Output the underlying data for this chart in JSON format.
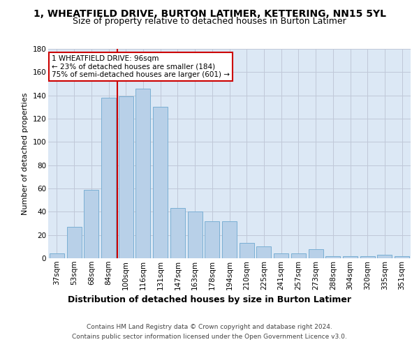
{
  "title": "1, WHEATFIELD DRIVE, BURTON LATIMER, KETTERING, NN15 5YL",
  "subtitle": "Size of property relative to detached houses in Burton Latimer",
  "xlabel": "Distribution of detached houses by size in Burton Latimer",
  "ylabel": "Number of detached properties",
  "categories": [
    "37sqm",
    "53sqm",
    "68sqm",
    "84sqm",
    "100sqm",
    "116sqm",
    "131sqm",
    "147sqm",
    "163sqm",
    "178sqm",
    "194sqm",
    "210sqm",
    "225sqm",
    "241sqm",
    "257sqm",
    "273sqm",
    "288sqm",
    "304sqm",
    "320sqm",
    "335sqm",
    "351sqm"
  ],
  "values": [
    4,
    27,
    59,
    138,
    139,
    146,
    130,
    43,
    40,
    32,
    32,
    13,
    10,
    4,
    4,
    8,
    2,
    2,
    2,
    3,
    2
  ],
  "bar_color": "#b8d0e8",
  "bar_edge_color": "#7aafd4",
  "bar_width": 0.85,
  "ylim": [
    0,
    180
  ],
  "yticks": [
    0,
    20,
    40,
    60,
    80,
    100,
    120,
    140,
    160,
    180
  ],
  "vline_index": 4,
  "vline_color": "#cc0000",
  "annotation_text": "1 WHEATFIELD DRIVE: 96sqm\n← 23% of detached houses are smaller (184)\n75% of semi-detached houses are larger (601) →",
  "annotation_box_color": "#ffffff",
  "annotation_box_edge": "#cc0000",
  "footer_line1": "Contains HM Land Registry data © Crown copyright and database right 2024.",
  "footer_line2": "Contains public sector information licensed under the Open Government Licence v3.0.",
  "title_fontsize": 10,
  "subtitle_fontsize": 9,
  "xlabel_fontsize": 9,
  "ylabel_fontsize": 8,
  "tick_fontsize": 7.5,
  "annotation_fontsize": 7.5,
  "footer_fontsize": 6.5,
  "background_color": "#ffffff",
  "plot_bg_color": "#dce8f5",
  "grid_color": "#c0c8d8"
}
